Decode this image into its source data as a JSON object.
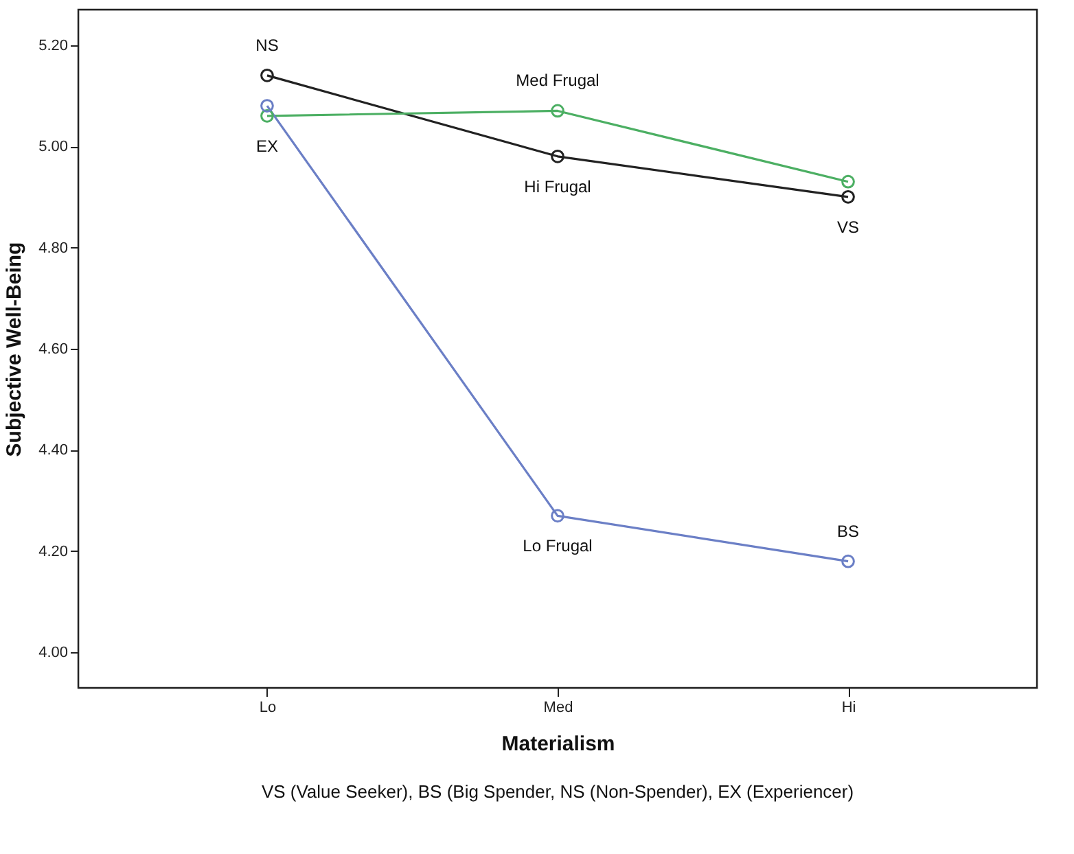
{
  "chart_data": {
    "type": "line",
    "xlabel": "Materialism",
    "ylabel": "Subjective Well-Being",
    "categories": [
      "Lo",
      "Med",
      "Hi"
    ],
    "series": [
      {
        "color": "#222222",
        "values": [
          5.14,
          4.98,
          4.9
        ]
      },
      {
        "color": "#4caf63",
        "values": [
          5.06,
          5.07,
          4.93
        ]
      },
      {
        "color": "#6b7fc6",
        "values": [
          5.08,
          4.27,
          4.18
        ]
      }
    ],
    "ylim": [
      3.93,
      5.27
    ],
    "yticks": [
      {
        "value": 4.0,
        "label": "4.00"
      },
      {
        "value": 4.2,
        "label": "4.20"
      },
      {
        "value": 4.4,
        "label": "4.40"
      },
      {
        "value": 4.6,
        "label": "4.60"
      },
      {
        "value": 4.8,
        "label": "4.80"
      },
      {
        "value": 5.0,
        "label": "5.00"
      },
      {
        "value": 5.2,
        "label": "5.20"
      }
    ],
    "marker": "circle",
    "line_style": "solid",
    "grid": false,
    "legend": false,
    "annotations": [
      {
        "text": "NS",
        "x": "Lo",
        "y": 5.14
      },
      {
        "text": "EX",
        "x": "Lo",
        "y": 5.06
      },
      {
        "text": "Med Frugal",
        "x": "Med",
        "y": 5.07
      },
      {
        "text": "Hi Frugal",
        "x": "Med",
        "y": 4.98
      },
      {
        "text": "Lo Frugal",
        "x": "Med",
        "y": 4.27
      },
      {
        "text": "VS",
        "x": "Hi",
        "y": 4.9
      },
      {
        "text": "BS",
        "x": "Hi",
        "y": 4.18
      },
      "VS (Value Seeker), BS (Big Spender, NS (Non-Spender), EX (Experiencer)"
    ]
  }
}
